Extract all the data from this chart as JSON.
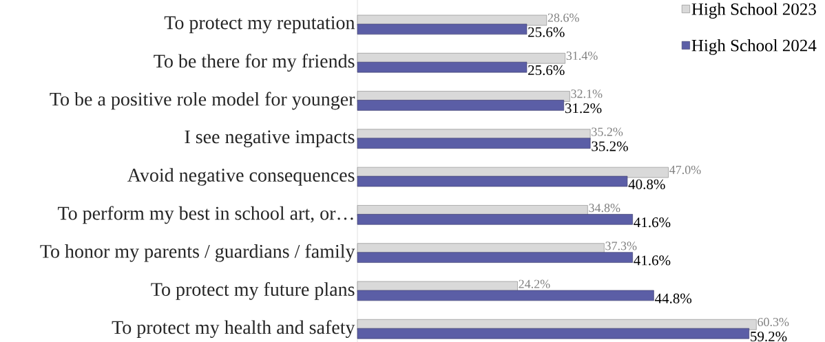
{
  "chart_data": {
    "type": "bar",
    "orientation": "horizontal",
    "categories": [
      "To protect my reputation",
      "To be there for my friends",
      "To be a positive role model for younger",
      "I see negative impacts",
      "Avoid negative consequences",
      "To perform my best in school art, or…",
      "To honor my parents / guardians / family",
      "To protect my future plans",
      "To protect my health and safety"
    ],
    "series": [
      {
        "name": "High School 2023",
        "color": "#d9d9d9",
        "values": [
          28.6,
          31.4,
          32.1,
          35.2,
          47.0,
          34.8,
          37.3,
          24.2,
          60.3
        ],
        "value_labels": [
          "28.6%",
          "31.4%",
          "32.1%",
          "35.2%",
          "47.0%",
          "34.8%",
          "37.3%",
          "24.2%",
          "60.3%"
        ]
      },
      {
        "name": "High School 2024",
        "color": "#5b5ea6",
        "values": [
          25.6,
          25.6,
          31.2,
          35.2,
          40.8,
          41.6,
          41.6,
          44.8,
          59.2
        ],
        "value_labels": [
          "25.6%",
          "25.6%",
          "31.2%",
          "35.2%",
          "40.8%",
          "41.6%",
          "41.6%",
          "44.8%",
          "59.2%"
        ]
      }
    ],
    "legend": "top right"
  }
}
